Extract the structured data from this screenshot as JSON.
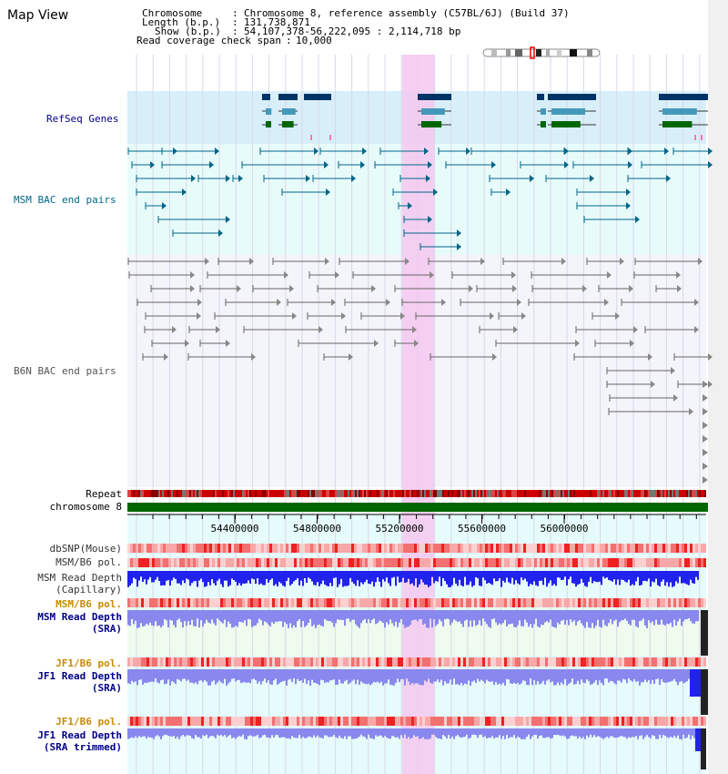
{
  "title": "Map View",
  "info": {
    "chromosome_key": "Chromosome",
    "chromosome_val": "Chromosome 8, reference assembly (C57BL/6J) (Build 37)",
    "length_key": "Length (b.p.)",
    "length_val": "131,738,871",
    "show_key": "Show (b.p.)",
    "show_val": "54,107,378-56,222,095 : 2,114,718 bp",
    "span_key": "Read coverage check span",
    "span_val": "10,000"
  },
  "tracks": {
    "refseq": "RefSeq Genes",
    "msm_bac": "MSM BAC end pairs",
    "b6n_bac": "B6N BAC end pairs",
    "repeat": "Repeat",
    "chromosome": "chromosome 8"
  },
  "axis": {
    "ticks": [
      "54400000",
      "54800000",
      "55200000",
      "55600000",
      "56000000"
    ]
  },
  "bottom_tracks": {
    "dbsnp": "dbSNP(Mouse)",
    "msm_b6_pol": "MSM/B6 pol.",
    "msm_depth_cap_1": "MSM Read Depth",
    "msm_depth_cap_2": "(Capillary)",
    "msm_b6_pol_2": "MSM/B6 pol.",
    "msm_depth_sra_1": "MSM Read Depth",
    "msm_depth_sra_2": "(SRA)",
    "jf1_b6_pol": "JF1/B6 pol.",
    "jf1_depth_sra_1": "JF1 Read Depth",
    "jf1_depth_sra_2": "(SRA)",
    "jf1_b6_pol_2": "JF1/B6 pol.",
    "jf1_depth_trim_1": "JF1 Read Depth",
    "jf1_depth_trim_2": "(SRA trimmed)"
  },
  "colors": {
    "navy": "#000088",
    "teal": "#006688",
    "gold": "#cc8800",
    "gene_dark": "#003366",
    "gene_mid": "#4499bb",
    "gene_green": "#006600",
    "highlight": "#f5c8f0",
    "refseq_bg": "#d8eff9",
    "bac_bg": "#e8fbfb",
    "depth_blue": "#2222ee",
    "depth_light": "#8888ee"
  }
}
